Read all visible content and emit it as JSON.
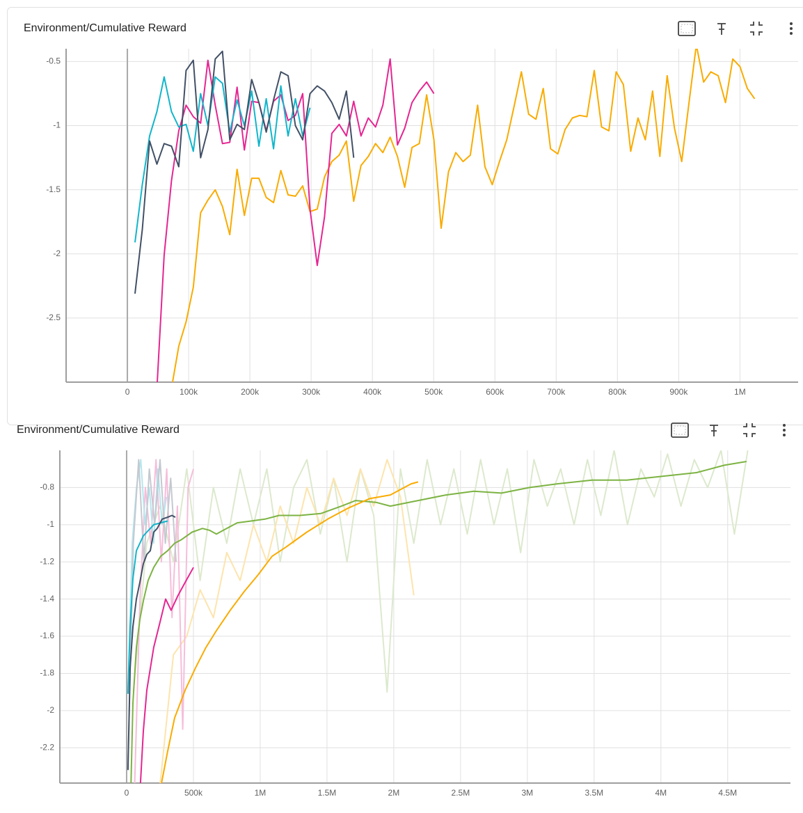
{
  "chart_data": [
    {
      "type": "line",
      "title": "Environment/Cumulative Reward",
      "grid": true,
      "xlim": [
        -100000,
        1095000
      ],
      "ylim": [
        -3,
        -0.4
      ],
      "xticks": [
        0,
        {
          "value": 100000,
          "label": "100k"
        },
        {
          "value": 200000,
          "label": "200k"
        },
        {
          "value": 300000,
          "label": "300k"
        },
        {
          "value": 400000,
          "label": "400k"
        },
        {
          "value": 500000,
          "label": "500k"
        },
        {
          "value": 600000,
          "label": "600k"
        },
        {
          "value": 700000,
          "label": "700k"
        },
        {
          "value": 800000,
          "label": "800k"
        },
        {
          "value": 900000,
          "label": "900k"
        },
        {
          "value": 1000000,
          "label": "1M"
        }
      ],
      "yticks": [
        -2.5,
        -2,
        -1.5,
        -1,
        -0.5
      ],
      "series": [
        {
          "color": "#f9ab00",
          "x": [
            72000,
            83900,
            95800,
            107700,
            119600,
            131500,
            143400,
            155300,
            167200,
            179100,
            191000,
            202900,
            214800,
            226700,
            238600,
            250500,
            262400,
            274300,
            286200,
            298100,
            310000,
            321900,
            333800,
            345700,
            357600,
            369500,
            381400,
            393300,
            405200,
            417100,
            429000,
            440900,
            452800,
            464700,
            476600,
            488500,
            500400,
            512300,
            524200,
            536100,
            548000,
            559900,
            571800,
            583700,
            595600,
            607500,
            619400,
            631300,
            643200,
            655100,
            667000,
            678900,
            690800,
            702700,
            714600,
            726500,
            738400,
            750300,
            762200,
            774100,
            786000,
            797900,
            809800,
            821700,
            833600,
            845500,
            857400,
            869300,
            881200,
            893100,
            905000,
            916900,
            928800,
            940700,
            952600,
            964500,
            976400,
            988300,
            1000200,
            1012100,
            1024000
          ],
          "values": [
            -3.05,
            -2.72,
            -2.53,
            -2.26,
            -1.68,
            -1.58,
            -1.5,
            -1.63,
            -1.85,
            -1.34,
            -1.7,
            -1.41,
            -1.41,
            -1.56,
            -1.6,
            -1.35,
            -1.54,
            -1.55,
            -1.47,
            -1.67,
            -1.65,
            -1.4,
            -1.28,
            -1.23,
            -1.12,
            -1.59,
            -1.31,
            -1.24,
            -1.14,
            -1.21,
            -1.09,
            -1.24,
            -1.48,
            -1.17,
            -1.14,
            -0.76,
            -1.11,
            -1.8,
            -1.36,
            -1.21,
            -1.28,
            -1.23,
            -0.84,
            -1.32,
            -1.46,
            -1.28,
            -1.11,
            -0.85,
            -0.58,
            -0.91,
            -0.95,
            -0.71,
            -1.18,
            -1.22,
            -1.03,
            -0.94,
            -0.92,
            -0.93,
            -0.57,
            -1.01,
            -1.04,
            -0.58,
            -0.68,
            -1.2,
            -0.94,
            -1.11,
            -0.73,
            -1.24,
            -0.61,
            -1.02,
            -1.28,
            -0.82,
            -0.37,
            -0.66,
            -0.58,
            -0.61,
            -0.82,
            -0.48,
            -0.54,
            -0.71,
            -0.79
          ]
        },
        {
          "color": "#e52592",
          "x": [
            48200,
            60100,
            72000,
            83900,
            95800,
            107700,
            119600,
            131500,
            143400,
            155300,
            167200,
            179100,
            191000,
            202900,
            214800,
            226700,
            238600,
            250500,
            262400,
            274300,
            286200,
            298100,
            310000,
            321900,
            333800,
            345700,
            357600,
            369500,
            381400,
            393300,
            405200,
            417100,
            429000,
            440900,
            452800,
            464700,
            476600,
            488500,
            500400
          ],
          "values": [
            -3.05,
            -2.01,
            -1.43,
            -1.04,
            -0.84,
            -0.93,
            -0.98,
            -0.49,
            -0.84,
            -1.14,
            -1.13,
            -0.7,
            -1.19,
            -0.81,
            -0.82,
            -1.04,
            -0.81,
            -0.76,
            -0.96,
            -0.92,
            -0.75,
            -1.65,
            -2.09,
            -1.71,
            -1.06,
            -0.99,
            -1.08,
            -0.81,
            -1.08,
            -0.94,
            -1.01,
            -0.84,
            -0.48,
            -1.15,
            -1.02,
            -0.82,
            -0.73,
            -0.66,
            -0.75
          ]
        },
        {
          "color": "#12b5cb",
          "x": [
            12500,
            24400,
            36300,
            48200,
            60100,
            72000,
            83900,
            95800,
            107700,
            119600,
            131500,
            143400,
            155300,
            167200,
            179100,
            191000,
            202900,
            214800,
            226700,
            238600,
            250500,
            262400,
            274300,
            286200,
            298100
          ],
          "values": [
            -1.91,
            -1.46,
            -1.08,
            -0.89,
            -0.62,
            -0.89,
            -1.01,
            -0.99,
            -1.2,
            -0.75,
            -1,
            -0.62,
            -0.67,
            -1.05,
            -0.8,
            -1,
            -0.73,
            -1.16,
            -0.79,
            -1.18,
            -0.69,
            -1.08,
            -0.79,
            -1.08,
            -0.86
          ]
        },
        {
          "color": "#425066",
          "x": [
            12500,
            24400,
            36300,
            48200,
            60100,
            72000,
            83900,
            95800,
            107700,
            119600,
            131500,
            143400,
            155300,
            167200,
            179100,
            191000,
            202900,
            214800,
            226700,
            238600,
            250500,
            262400,
            274300,
            286200,
            298100,
            310000,
            321900,
            333800,
            345700,
            357600,
            369500
          ],
          "values": [
            -2.31,
            -1.81,
            -1.12,
            -1.3,
            -1.14,
            -1.16,
            -1.32,
            -0.57,
            -0.49,
            -1.25,
            -1.03,
            -0.48,
            -0.42,
            -1.11,
            -0.99,
            -1.03,
            -0.64,
            -0.82,
            -1.05,
            -0.8,
            -0.58,
            -0.61,
            -1,
            -1.11,
            -0.75,
            -0.69,
            -0.73,
            -0.82,
            -0.95,
            -0.73,
            -1.25
          ]
        }
      ]
    },
    {
      "type": "line",
      "title": "Environment/Cumulative Reward",
      "grid": true,
      "xlim": [
        -500000,
        4970000
      ],
      "ylim": [
        -2.39,
        -0.6
      ],
      "xticks": [
        0,
        {
          "value": 500000,
          "label": "500k"
        },
        {
          "value": 1000000,
          "label": "1M"
        },
        {
          "value": 1500000,
          "label": "1.5M"
        },
        {
          "value": 2000000,
          "label": "2M"
        },
        {
          "value": 2500000,
          "label": "2.5M"
        },
        {
          "value": 3000000,
          "label": "3M"
        },
        {
          "value": 3500000,
          "label": "3.5M"
        },
        {
          "value": 4000000,
          "label": "4M"
        },
        {
          "value": 4500000,
          "label": "4.5M"
        }
      ],
      "yticks": [
        -2.2,
        -2,
        -1.8,
        -1.6,
        -1.4,
        -1.2,
        -1,
        -0.8
      ],
      "series": [
        {
          "color": "#dce9cd",
          "x": [
            50000,
            150000,
            250000,
            350000,
            450000,
            550000,
            650000,
            750000,
            850000,
            950000,
            1050000,
            1150000,
            1250000,
            1350000,
            1450000,
            1550000,
            1650000,
            1750000,
            1850000,
            1950000,
            2050000,
            2150000,
            2250000,
            2350000,
            2450000,
            2550000,
            2650000,
            2750000,
            2850000,
            2950000,
            3050000,
            3150000,
            3250000,
            3350000,
            3450000,
            3550000,
            3650000,
            3750000,
            3850000,
            3950000,
            4050000,
            4150000,
            4250000,
            4350000,
            4450000,
            4550000,
            4650000
          ],
          "values": [
            -1.9,
            -1.1,
            -0.9,
            -1.2,
            -0.7,
            -1.3,
            -0.8,
            -1.1,
            -0.7,
            -1,
            -0.7,
            -1.2,
            -0.8,
            -0.65,
            -1.05,
            -0.75,
            -1.2,
            -0.7,
            -0.95,
            -1.9,
            -0.7,
            -1.1,
            -0.65,
            -1,
            -0.7,
            -1.05,
            -0.65,
            -1,
            -0.7,
            -1.15,
            -0.65,
            -0.9,
            -0.7,
            -1,
            -0.65,
            -0.95,
            -0.6,
            -1,
            -0.7,
            -0.85,
            -0.62,
            -0.9,
            -0.65,
            -0.8,
            -0.6,
            -1.05,
            -0.6
          ]
        },
        {
          "color": "#fde4ad",
          "x": [
            250000,
            350000,
            450000,
            550000,
            650000,
            750000,
            850000,
            950000,
            1050000,
            1150000,
            1250000,
            1350000,
            1450000,
            1550000,
            1650000,
            1750000,
            1850000,
            1950000,
            2050000,
            2150000
          ],
          "values": [
            -2.4,
            -1.7,
            -1.6,
            -1.35,
            -1.5,
            -1.15,
            -1.3,
            -1,
            -1.2,
            -0.9,
            -1.1,
            -0.8,
            -1,
            -0.75,
            -0.95,
            -0.7,
            -0.9,
            -0.65,
            -0.85,
            -1.38
          ]
        },
        {
          "color": "#f6bdda",
          "x": [
            60000,
            100000,
            140000,
            180000,
            220000,
            260000,
            300000,
            340000,
            380000,
            420000,
            460000,
            500000
          ],
          "values": [
            -2.4,
            -1.4,
            -0.8,
            -1.1,
            -0.65,
            -1.2,
            -0.7,
            -1.5,
            -0.9,
            -2.1,
            -0.8,
            -0.7
          ]
        },
        {
          "color": "#b5e6ee",
          "x": [
            10000,
            42000,
            74000,
            106000,
            138000,
            170000,
            202000,
            234000,
            266000,
            298000
          ],
          "values": [
            -1.9,
            -1.1,
            -0.8,
            -0.65,
            -1,
            -0.8,
            -1.1,
            -0.7,
            -1,
            -0.85
          ]
        },
        {
          "color": "#c4c9d1",
          "x": [
            10000,
            50000,
            90000,
            130000,
            170000,
            210000,
            250000,
            290000,
            330000,
            370000
          ],
          "values": [
            -2.3,
            -1.1,
            -0.65,
            -1.2,
            -0.7,
            -1,
            -0.65,
            -1.1,
            -0.75,
            -1.2
          ]
        },
        {
          "color": "#7cb342",
          "x": [
            31000,
            47000,
            73000,
            99000,
            125000,
            161000,
            203000,
            255000,
            307000,
            359000,
            411000,
            490000,
            568000,
            620000,
            672000,
            724000,
            828000,
            932000,
            1036000,
            1141000,
            1297000,
            1453000,
            1609000,
            1714000,
            1870000,
            1974000,
            2182000,
            2391000,
            2599000,
            2807000,
            3016000,
            3224000,
            3484000,
            3745000,
            4005000,
            4266000,
            4474000,
            4641000
          ],
          "values": [
            -2.45,
            -1.96,
            -1.66,
            -1.51,
            -1.41,
            -1.3,
            -1.23,
            -1.17,
            -1.14,
            -1.1,
            -1.08,
            -1.04,
            -1.02,
            -1.03,
            -1.05,
            -1.03,
            -0.99,
            -0.98,
            -0.97,
            -0.95,
            -0.95,
            -0.94,
            -0.9,
            -0.87,
            -0.88,
            -0.9,
            -0.87,
            -0.84,
            -0.82,
            -0.83,
            -0.8,
            -0.78,
            -0.76,
            -0.76,
            -0.74,
            -0.72,
            -0.68,
            -0.66
          ]
        },
        {
          "color": "#f9ab00",
          "x": [
            245000,
            307000,
            359000,
            438000,
            516000,
            594000,
            672000,
            776000,
            880000,
            984000,
            1089000,
            1193000,
            1349000,
            1505000,
            1661000,
            1818000,
            1974000,
            2130000,
            2182000
          ],
          "values": [
            -2.45,
            -2.22,
            -2.04,
            -1.89,
            -1.77,
            -1.66,
            -1.57,
            -1.46,
            -1.36,
            -1.27,
            -1.17,
            -1.12,
            -1.04,
            -0.97,
            -0.91,
            -0.86,
            -0.84,
            -0.78,
            -0.77
          ]
        },
        {
          "color": "#e52592",
          "x": [
            99000,
            125000,
            151000,
            203000,
            255000,
            292000,
            333000,
            385000,
            438000,
            500000
          ],
          "values": [
            -2.45,
            -2.11,
            -1.89,
            -1.66,
            -1.51,
            -1.4,
            -1.46,
            -1.38,
            -1.31,
            -1.23
          ]
        },
        {
          "color": "#12b5cb",
          "x": [
            10000,
            26000,
            47000,
            73000,
            99000,
            125000,
            151000,
            177000,
            203000,
            255000,
            307000
          ],
          "values": [
            -1.91,
            -1.55,
            -1.29,
            -1.14,
            -1.1,
            -1.06,
            -1.04,
            -1.02,
            -1,
            -0.99,
            -0.98
          ]
        },
        {
          "color": "#425066",
          "x": [
            10000,
            26000,
            47000,
            73000,
            99000,
            125000,
            151000,
            177000,
            203000,
            229000,
            266000,
            307000,
            339000,
            365000
          ],
          "values": [
            -2.32,
            -1.77,
            -1.55,
            -1.4,
            -1.31,
            -1.21,
            -1.16,
            -1.14,
            -1.04,
            -1.02,
            -0.97,
            -0.96,
            -0.95,
            -0.96
          ]
        }
      ]
    }
  ]
}
